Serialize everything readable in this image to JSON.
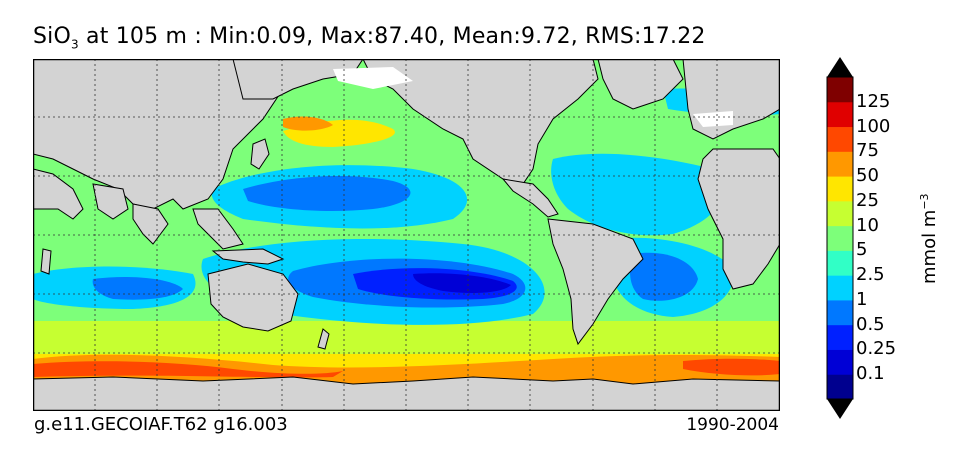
{
  "title": {
    "variable": "SiO",
    "subscript": "3",
    "rest": " at 105 m : Min:0.09, Max:87.40, Mean:9.72, RMS:17.22"
  },
  "footer": {
    "case": "g.e11.GECOIAF.T62 g16.003",
    "years": "1990-2004"
  },
  "colorbar": {
    "unit_base": "mmol m",
    "unit_exp": "−3",
    "levels": [
      "0.1",
      "0.25",
      "0.5",
      "1",
      "2.5",
      "5",
      "10",
      "25",
      "50",
      "75",
      "100",
      "125"
    ],
    "colors": [
      "#00008f",
      "#0000d6",
      "#0020ff",
      "#0078ff",
      "#00d2ff",
      "#31ffc6",
      "#7dff7a",
      "#c6ff31",
      "#ffe600",
      "#ff9800",
      "#ff4800",
      "#e00000",
      "#7f0000"
    ],
    "extend": "both"
  },
  "map": {
    "land_color": "#d3d3d3",
    "grid": "dotted"
  }
}
